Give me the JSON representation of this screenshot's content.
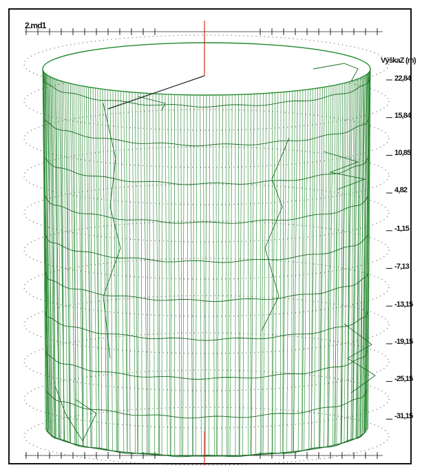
{
  "file_label": "2.md1",
  "axis": {
    "title": "VýškaZ (m)",
    "ticks": [
      "22,84",
      "15,84",
      "10,85",
      "4,82",
      "-1,15",
      "-7,13",
      "-13,15",
      "-19,15",
      "-25,15",
      "-31,15"
    ]
  },
  "colors": {
    "mesh": "#1f8a2a",
    "mesh_dark": "#176b21",
    "axis_vertical": "#d12a1a",
    "axis_radial": "#222222",
    "dots": "#555555",
    "background": "#ffffff"
  }
}
